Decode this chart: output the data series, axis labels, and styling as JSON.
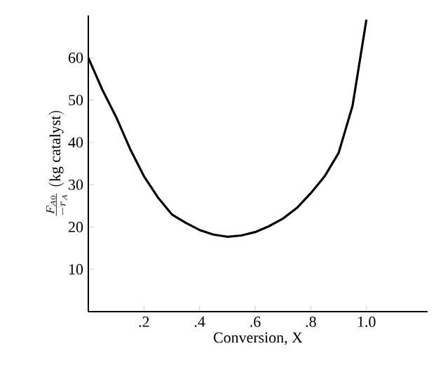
{
  "chart_data": {
    "type": "line",
    "xlabel": "Conversion, X",
    "ylabel": "\\frac{F_{A0}}{-r_{A}}\\ \\mathrm{(kg\\ catalyst)}",
    "x": [
      0,
      0.05,
      0.1,
      0.15,
      0.2,
      0.25,
      0.3,
      0.35,
      0.4,
      0.45,
      0.5,
      0.55,
      0.6,
      0.65,
      0.7,
      0.75,
      0.8,
      0.85,
      0.9,
      0.95,
      1.0
    ],
    "series": [
      {
        "color": "#000000",
        "values": [
          60,
          52.5,
          46,
          38.5,
          32,
          27,
          23,
          21,
          19.3,
          18.2,
          17.7,
          18,
          18.8,
          20.2,
          22,
          24.5,
          28,
          32,
          37.5,
          48.6,
          69
        ]
      }
    ],
    "xlim": [
      0,
      1.22
    ],
    "ylim": [
      0,
      70
    ],
    "xticks": [
      {
        "value": 0.2,
        "label": ".2"
      },
      {
        "value": 0.4,
        "label": ".4"
      },
      {
        "value": 0.6,
        "label": ".6"
      },
      {
        "value": 0.8,
        "label": ".8"
      },
      {
        "value": 1.0,
        "label": "1.0"
      }
    ],
    "yticks": [
      10,
      20,
      30,
      40,
      50,
      60
    ],
    "grid": false,
    "marker": "none",
    "line_style": "solid"
  }
}
